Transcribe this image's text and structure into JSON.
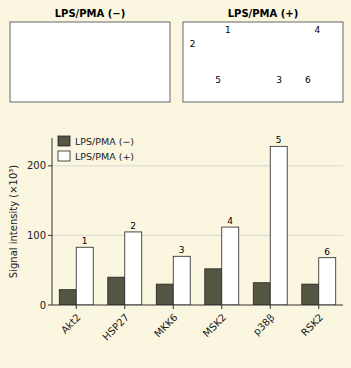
{
  "chart_data": {
    "type": "bar",
    "categories": [
      "Akt2",
      "HSP27",
      "MKK6",
      "MSK2",
      "p38β",
      "RSK2"
    ],
    "series": [
      {
        "name": "LPS/PMA (−)",
        "color": "#555544",
        "values": [
          22,
          40,
          30,
          52,
          32,
          30
        ]
      },
      {
        "name": "LPS/PMA (+)",
        "color": "#ffffff",
        "values": [
          83,
          105,
          70,
          112,
          228,
          68
        ]
      }
    ],
    "ylabel": "Signal intensity (×10³)",
    "ylim": [
      0,
      240
    ],
    "yticks": [
      0,
      100,
      200
    ],
    "grid": true,
    "legend": "upper left",
    "annotations": {
      "bars": [
        "1",
        "2",
        "3",
        "4",
        "5",
        "6"
      ],
      "blot_titles": [
        "LPS/PMA (−)",
        "LPS/PMA (+)"
      ],
      "blot_spots": [
        "1",
        "2",
        "3",
        "4",
        "5",
        "6"
      ]
    }
  }
}
